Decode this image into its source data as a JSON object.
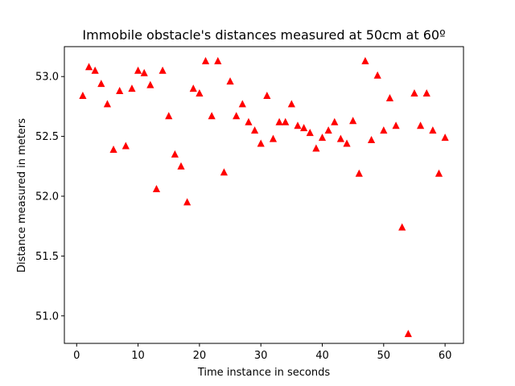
{
  "chart_data": {
    "type": "scatter",
    "title": "Immobile obstacle's distances measured at 50cm at 60º",
    "xlabel": "Time instance in seconds",
    "ylabel": "Distance measured in meters",
    "xlim": [
      -2,
      63
    ],
    "ylim": [
      50.77,
      53.25
    ],
    "xticks": [
      "0",
      "10",
      "20",
      "30",
      "40",
      "50",
      "60"
    ],
    "yticks": [
      "51.0",
      "51.5",
      "52.0",
      "52.5",
      "53.0"
    ],
    "grid": false,
    "marker": "triangle",
    "color": "#ff0000",
    "x": [
      1,
      2,
      3,
      4,
      5,
      6,
      7,
      8,
      9,
      10,
      11,
      12,
      13,
      14,
      15,
      16,
      17,
      18,
      19,
      20,
      21,
      22,
      23,
      24,
      25,
      26,
      27,
      28,
      29,
      30,
      31,
      32,
      33,
      34,
      35,
      36,
      37,
      38,
      39,
      40,
      41,
      42,
      43,
      44,
      45,
      46,
      47,
      48,
      49,
      50,
      51,
      52,
      53,
      54,
      55,
      56,
      57,
      58,
      59,
      60
    ],
    "y": [
      52.84,
      53.08,
      53.05,
      52.94,
      52.77,
      52.39,
      52.88,
      52.42,
      52.9,
      53.05,
      53.03,
      52.93,
      52.06,
      53.05,
      52.67,
      52.35,
      52.25,
      51.95,
      52.9,
      52.86,
      53.13,
      52.67,
      53.13,
      52.2,
      52.96,
      52.67,
      52.77,
      52.62,
      52.55,
      52.44,
      52.84,
      52.48,
      52.62,
      52.62,
      52.77,
      52.59,
      52.57,
      52.53,
      52.4,
      52.49,
      52.55,
      52.62,
      52.48,
      52.44,
      52.63,
      52.19,
      53.13,
      52.47,
      53.01,
      52.55,
      52.82,
      52.59,
      51.74,
      50.85,
      52.86,
      52.59,
      52.86,
      52.55,
      52.19,
      52.49
    ]
  }
}
